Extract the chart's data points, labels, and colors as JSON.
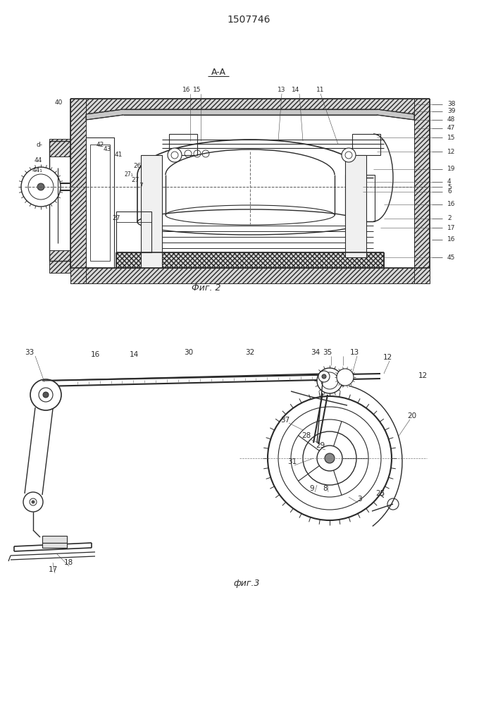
{
  "title": "1507746",
  "fig_width": 7.07,
  "fig_height": 10.0,
  "bg_color": "#ffffff",
  "line_color": "#2a2a2a",
  "fig2_label": "Фиг. 2",
  "fig3_label": "фиг.3",
  "section_label": "A-A"
}
